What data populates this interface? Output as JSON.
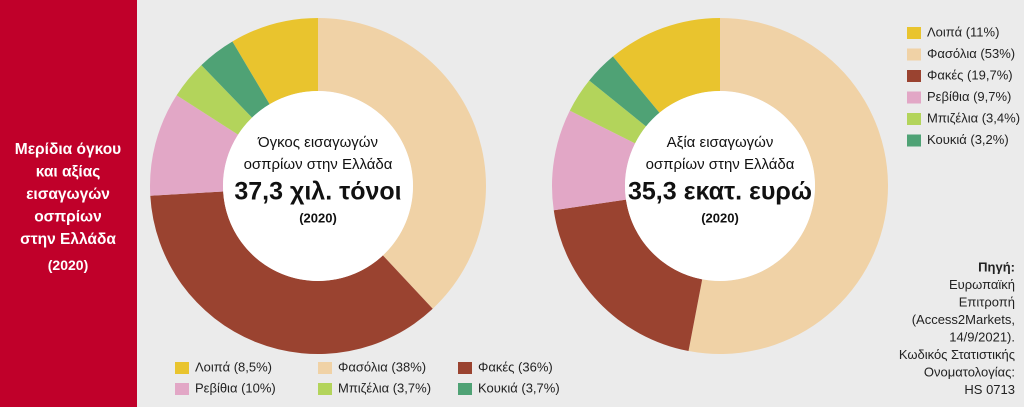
{
  "sidebar": {
    "lines": [
      "Μερίδια όγκου",
      "και αξίας",
      "εισαγωγών",
      "οσπρίων",
      "στην Ελλάδα",
      "(2020)"
    ]
  },
  "source": {
    "lines": [
      "Πηγή:",
      "Ευρωπαϊκή",
      "Επιτροπή",
      "(Access2Markets,",
      "14/9/2021).",
      "Κωδικός Στατιστικής",
      "Ονοματολογίας:",
      "HS 0713"
    ]
  },
  "chart_data": [
    {
      "type": "donut",
      "center_text": [
        "Όγκος εισαγωγών",
        "οσπρίων στην Ελλάδα"
      ],
      "total_label": "37,3 χιλ. τόνοι",
      "year": "(2020)",
      "categories": [
        "Λοιπά",
        "Φασόλια",
        "Φακές",
        "Ρεβίθια",
        "Μπιζέλια",
        "Κουκιά"
      ],
      "values": [
        8.5,
        38,
        36,
        10,
        3.7,
        3.7
      ],
      "legend_labels": [
        "Λοιπά (8,5%)",
        "Φασόλια (38%)",
        "Φακές (36%)",
        "Ρεβίθια (10%)",
        "Μπιζέλια (3,7%)",
        "Κουκιά (3,7%)"
      ],
      "colors": [
        "#e9c42e",
        "#f0d2a6",
        "#9a4330",
        "#e2a7c6",
        "#b3d45b",
        "#4fa275"
      ],
      "legend": "bottom"
    },
    {
      "type": "donut",
      "center_text": [
        "Αξία εισαγωγών",
        "οσπρίων στην Ελλάδα"
      ],
      "total_label": "35,3 εκατ. ευρώ",
      "year": "(2020)",
      "categories": [
        "Λοιπά",
        "Φασόλια",
        "Φακές",
        "Ρεβίθια",
        "Μπιζέλια",
        "Κουκιά"
      ],
      "values": [
        11,
        53,
        19.7,
        9.7,
        3.4,
        3.2
      ],
      "legend_labels": [
        "Λοιπά (11%)",
        "Φασόλια (53%)",
        "Φακές (19,7%)",
        "Ρεβίθια (9,7%)",
        "Μπιζέλια (3,4%)",
        "Κουκιά (3,2%)"
      ],
      "colors": [
        "#e9c42e",
        "#f0d2a6",
        "#9a4330",
        "#e2a7c6",
        "#b3d45b",
        "#4fa275"
      ],
      "legend": "top-right"
    }
  ]
}
